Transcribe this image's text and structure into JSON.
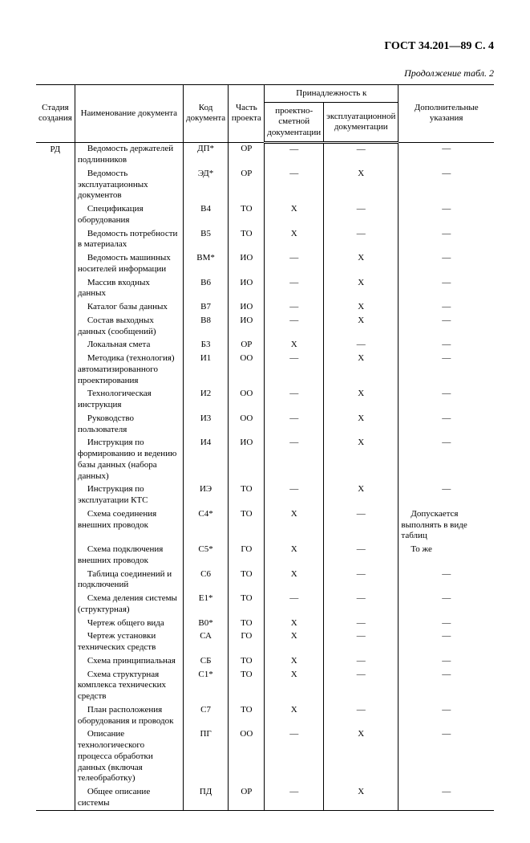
{
  "header": {
    "doc_number": "ГОСТ 34.201—89 С. 4",
    "table_caption": "Продолжение табл. 2"
  },
  "columns": {
    "stage": "Стадия создания",
    "name": "Наименование документа",
    "code": "Код документа",
    "part": "Часть проекта",
    "belong_group": "Принадлежность к",
    "belong_proj": "проектно-сметной документации",
    "belong_expl": "эксплуатационной документации",
    "notes": "Дополнительные указания"
  },
  "stage_label": "РД",
  "rows": [
    {
      "name": "Ведомость держателей подлинников",
      "code": "ДП*",
      "part": "ОР",
      "proj": "—",
      "expl": "—",
      "notes": "—"
    },
    {
      "name": "Ведомость эксплуатационных документов",
      "code": "ЭД*",
      "part": "ОР",
      "proj": "—",
      "expl": "Х",
      "notes": "—"
    },
    {
      "name": "Спецификация оборудования",
      "code": "В4",
      "part": "ТО",
      "proj": "Х",
      "expl": "—",
      "notes": "—"
    },
    {
      "name": "Ведомость потребности в материалах",
      "code": "В5",
      "part": "ТО",
      "proj": "Х",
      "expl": "—",
      "notes": "—"
    },
    {
      "name": "Ведомость машинных носителей информации",
      "code": "ВМ*",
      "part": "ИО",
      "proj": "—",
      "expl": "Х",
      "notes": "—"
    },
    {
      "name": "Массив входных данных",
      "code": "В6",
      "part": "ИО",
      "proj": "—",
      "expl": "Х",
      "notes": "—"
    },
    {
      "name": "Каталог базы данных",
      "code": "В7",
      "part": "ИО",
      "proj": "—",
      "expl": "Х",
      "notes": "—"
    },
    {
      "name": "Состав выходных данных (сообщений)",
      "code": "В8",
      "part": "ИО",
      "proj": "—",
      "expl": "Х",
      "notes": "—"
    },
    {
      "name": "Локальная смета",
      "code": "Б3",
      "part": "ОР",
      "proj": "Х",
      "expl": "—",
      "notes": "—"
    },
    {
      "name": "Методика (технология) автоматизированного проектирования",
      "code": "И1",
      "part": "ОО",
      "proj": "—",
      "expl": "Х",
      "notes": "—"
    },
    {
      "name": "Технологическая инструкция",
      "code": "И2",
      "part": "ОО",
      "proj": "—",
      "expl": "Х",
      "notes": "—"
    },
    {
      "name": "Руководство пользователя",
      "code": "И3",
      "part": "ОО",
      "proj": "—",
      "expl": "Х",
      "notes": "—"
    },
    {
      "name": "Инструкция по формированию и ведению базы данных (набора данных)",
      "code": "И4",
      "part": "ИО",
      "proj": "—",
      "expl": "Х",
      "notes": "—"
    },
    {
      "name": "Инструкция по эксплуатации КТС",
      "code": "ИЭ",
      "part": "ТО",
      "proj": "—",
      "expl": "Х",
      "notes": "—"
    },
    {
      "name": "Схема соединения внешних проводок",
      "code": "С4*",
      "part": "ТО",
      "proj": "Х",
      "expl": "—",
      "notes": "Допускается выполнять в виде таблиц"
    },
    {
      "name": "Схема подключения внешних проводок",
      "code": "С5*",
      "part": "ГО",
      "proj": "Х",
      "expl": "—",
      "notes": "То же"
    },
    {
      "name": "Таблица соединений и подключений",
      "code": "С6",
      "part": "ТО",
      "proj": "Х",
      "expl": "—",
      "notes": "—"
    },
    {
      "name": "Схема деления системы (структурная)",
      "code": "Е1*",
      "part": "ТО",
      "proj": "—",
      "expl": "—",
      "notes": "—"
    },
    {
      "name": "Чертеж общего вида",
      "code": "В0*",
      "part": "ТО",
      "proj": "Х",
      "expl": "—",
      "notes": "—"
    },
    {
      "name": "Чертеж установки технических средств",
      "code": "СА",
      "part": "ГО",
      "proj": "Х",
      "expl": "—",
      "notes": "—"
    },
    {
      "name": "Схема принципиальная",
      "code": "СБ",
      "part": "ТО",
      "proj": "Х",
      "expl": "—",
      "notes": "—"
    },
    {
      "name": "Схема структурная комплекса технических средств",
      "code": "С1*",
      "part": "ТО",
      "proj": "Х",
      "expl": "—",
      "notes": "—"
    },
    {
      "name": "План расположения оборудования и проводок",
      "code": "С7",
      "part": "ТО",
      "proj": "Х",
      "expl": "—",
      "notes": "—"
    },
    {
      "name": "Описание технологического процесса обработки данных (включая телеобработку)",
      "code": "ПГ",
      "part": "ОО",
      "proj": "—",
      "expl": "Х",
      "notes": "—"
    },
    {
      "name": "Общее описание системы",
      "code": "ПД",
      "part": "ОР",
      "proj": "—",
      "expl": "Х",
      "notes": "—"
    }
  ],
  "col_widths": {
    "stage": "8%",
    "name": "28%",
    "code": "10%",
    "part": "8%",
    "proj": "10%",
    "expl": "10%",
    "notes": "26%"
  }
}
